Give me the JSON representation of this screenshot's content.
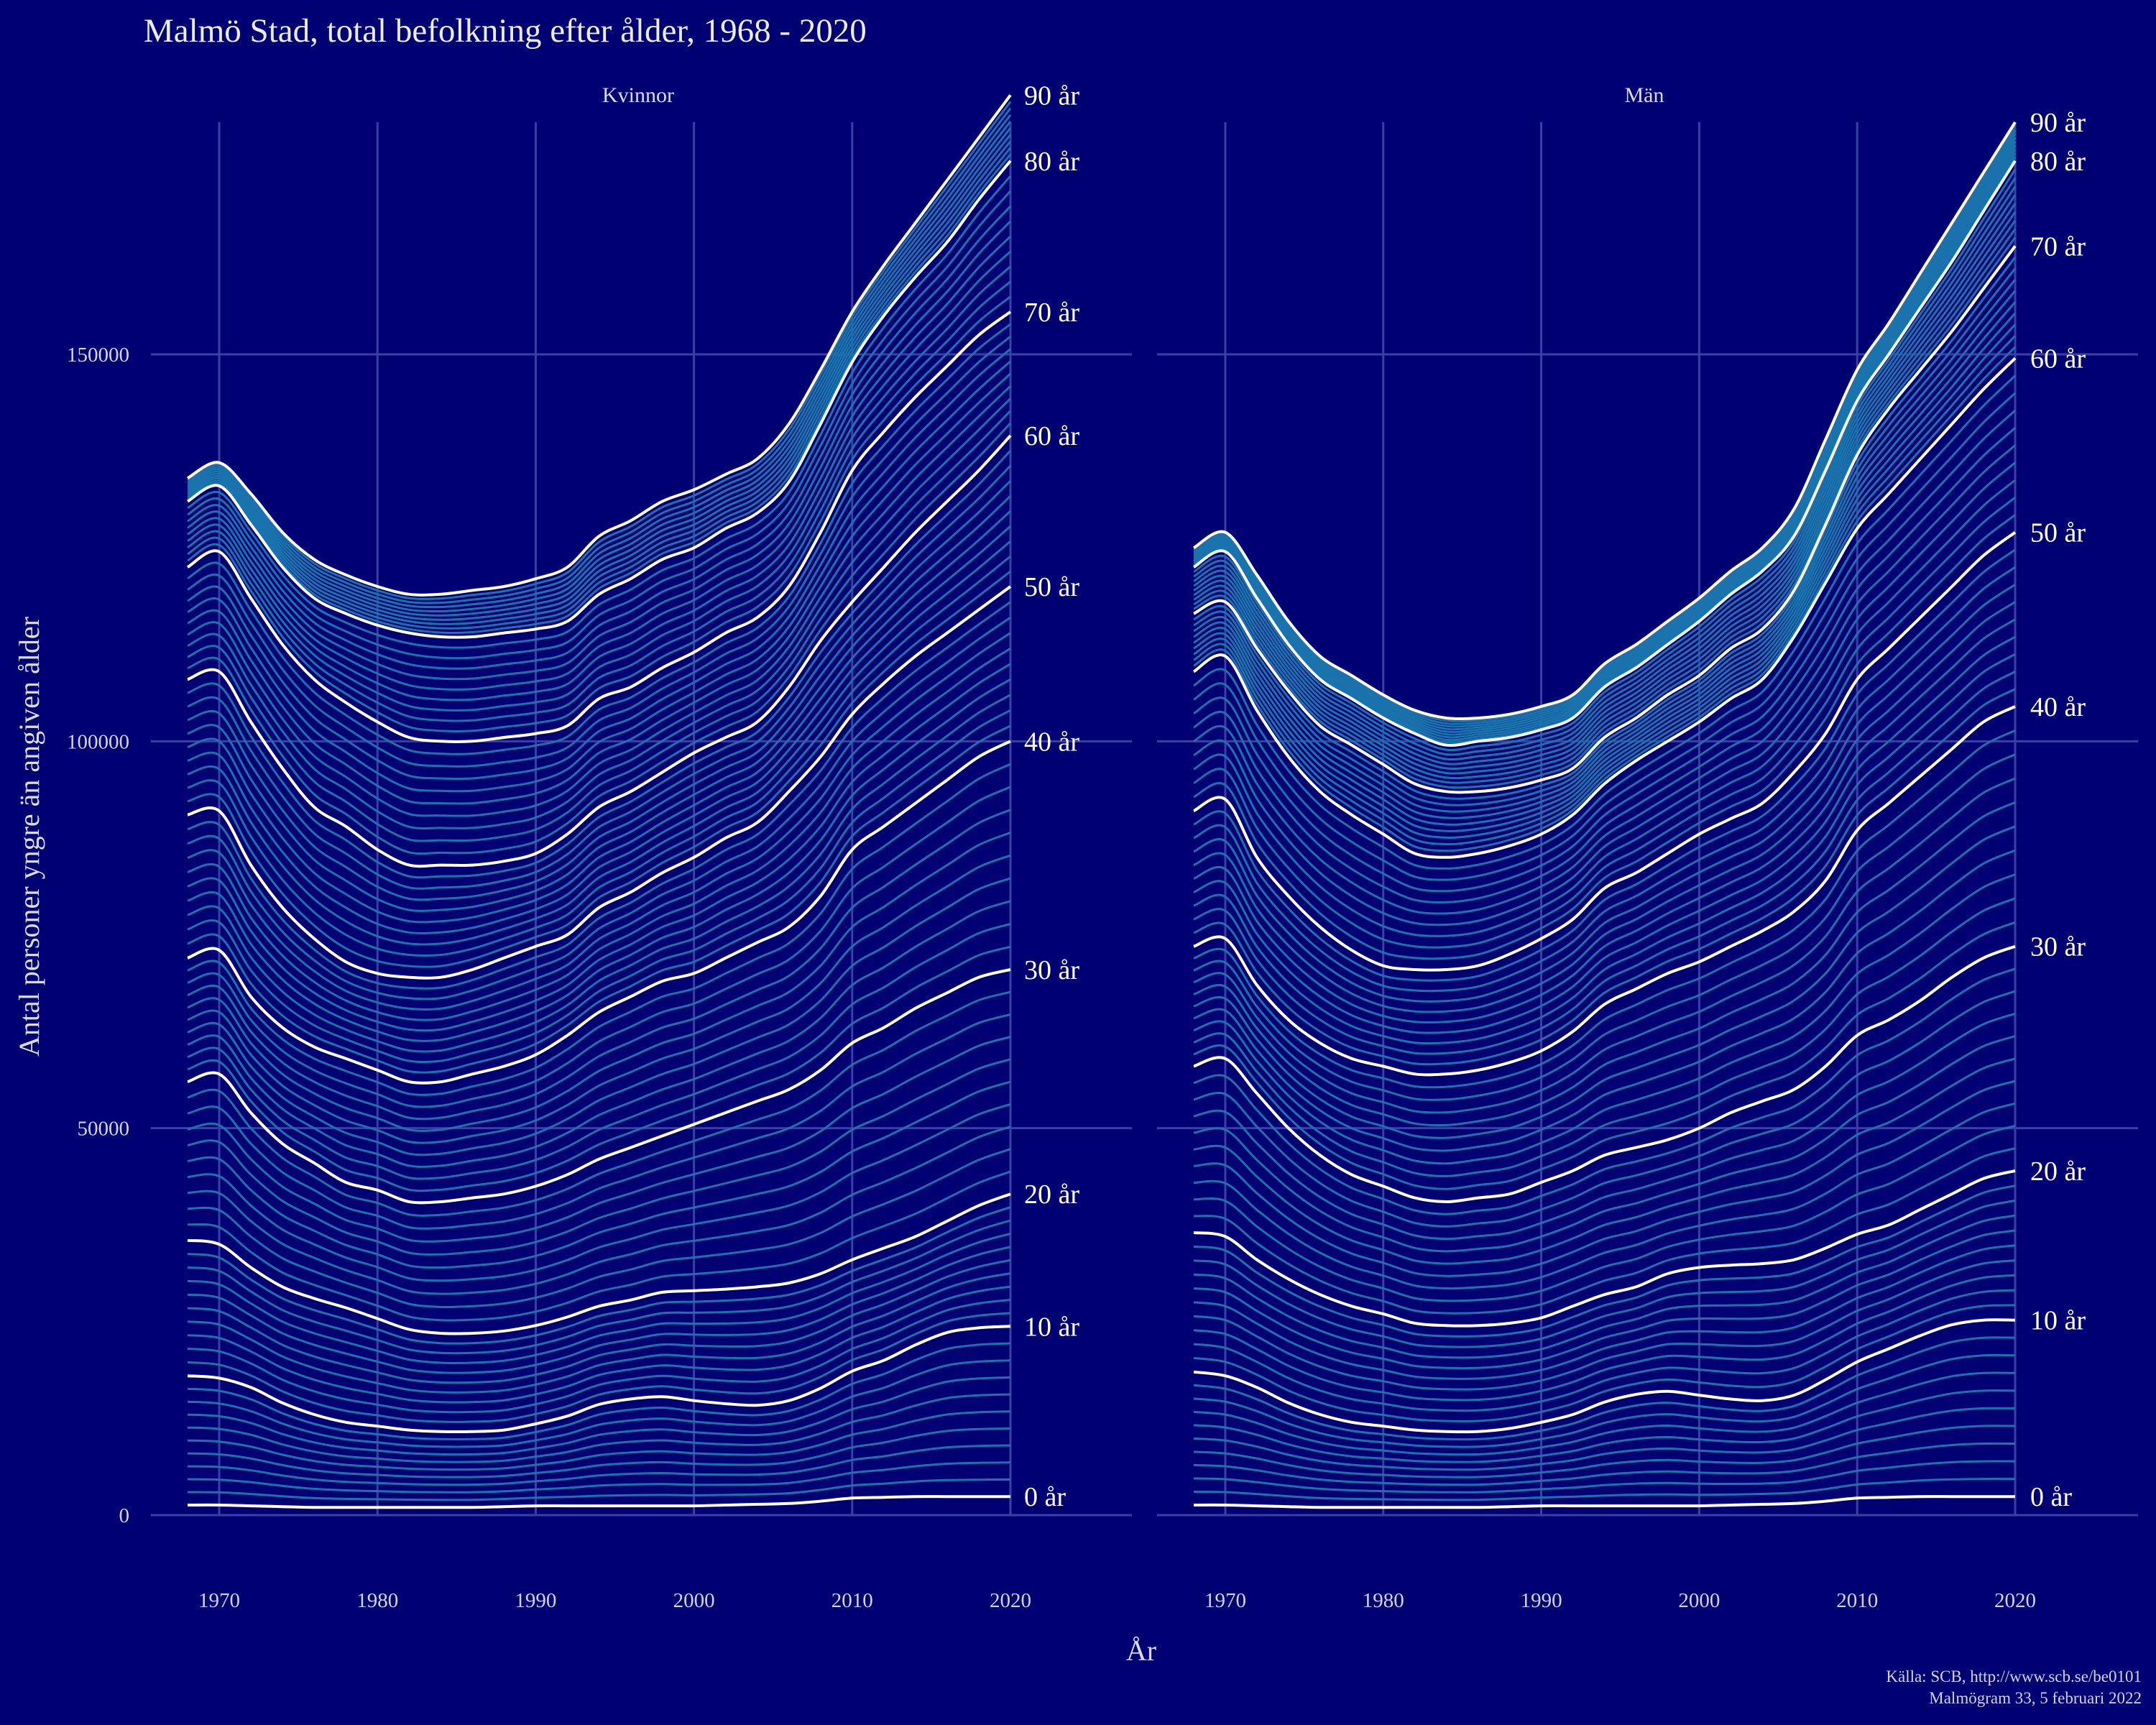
{
  "title": "Malmö Stad, total befolkning efter ålder, 1968 - 2020",
  "caption": [
    "Källa: SCB, http://www.scb.se/be0101",
    "Malmögram 33, 5 februari 2022"
  ],
  "colors": {
    "background": "#000072",
    "grid": "#3a3fa8",
    "minor_line": "#1a73ad",
    "major_line": "#ffffff"
  },
  "chart_data": {
    "type": "line",
    "ylabel": "Antal personer yngre än angiven ålder",
    "xlabel": "År",
    "xlim": [
      1968,
      2020
    ],
    "ylim": [
      0,
      180000
    ],
    "x_ticks": [
      1970,
      1980,
      1990,
      2000,
      2010,
      2020
    ],
    "y_ticks": [
      0,
      50000,
      100000,
      150000
    ],
    "years": [
      1968,
      1970,
      1972,
      1974,
      1976,
      1978,
      1980,
      1982,
      1984,
      1986,
      1988,
      1990,
      1992,
      1994,
      1996,
      1998,
      2000,
      2002,
      2004,
      2006,
      2008,
      2010,
      2012,
      2014,
      2016,
      2018,
      2020
    ],
    "panels": [
      {
        "name": "Kvinnor",
        "series": [
          {
            "name": "0 år",
            "label": "0 år",
            "values": [
              1300,
              1300,
              1200,
              1100,
              1000,
              1000,
              1000,
              1000,
              1000,
              1000,
              1100,
              1200,
              1200,
              1200,
              1200,
              1200,
              1200,
              1300,
              1400,
              1500,
              1800,
              2200,
              2300,
              2400,
              2400,
              2400,
              2400
            ]
          },
          {
            "name": "10 år",
            "label": "10 år",
            "values": [
              18000,
              17700,
              16500,
              14500,
              13000,
              12000,
              11500,
              11000,
              10800,
              10800,
              11000,
              11800,
              12800,
              14300,
              15000,
              15300,
              14800,
              14400,
              14200,
              14800,
              16400,
              18600,
              20000,
              22000,
              23600,
              24200,
              24400
            ]
          },
          {
            "name": "20 år",
            "label": "20 år",
            "values": [
              35500,
              35000,
              32000,
              29500,
              28000,
              26800,
              25400,
              24000,
              23500,
              23500,
              23800,
              24500,
              25600,
              27000,
              27800,
              28800,
              29000,
              29200,
              29500,
              30000,
              31200,
              33000,
              34500,
              36000,
              38000,
              40000,
              41500
            ]
          },
          {
            "name": "30 år",
            "label": "30 år",
            "values": [
              56000,
              57000,
              52000,
              48000,
              45500,
              43000,
              42000,
              40500,
              40500,
              41000,
              41500,
              42500,
              44000,
              46000,
              47500,
              49000,
              50500,
              52000,
              53500,
              55000,
              57500,
              61000,
              63000,
              65500,
              67500,
              69500,
              70500
            ]
          },
          {
            "name": "40 år",
            "label": "40 år",
            "values": [
              72000,
              73000,
              67000,
              63000,
              60500,
              59000,
              57500,
              56000,
              56000,
              57000,
              58000,
              59500,
              62000,
              65000,
              67000,
              69000,
              70000,
              72000,
              74000,
              76000,
              80000,
              86000,
              89000,
              92000,
              95000,
              98000,
              100000
            ]
          },
          {
            "name": "50 år",
            "label": "50 år",
            "values": [
              90500,
              91000,
              84000,
              78500,
              74500,
              71500,
              70000,
              69500,
              69500,
              70500,
              72000,
              73500,
              75000,
              78500,
              80500,
              83000,
              85000,
              87500,
              89500,
              93500,
              98000,
              103500,
              107500,
              111000,
              114000,
              117000,
              120000
            ]
          },
          {
            "name": "60 år",
            "label": "60 år",
            "values": [
              108000,
              109000,
              102500,
              96500,
              91500,
              89000,
              86000,
              84000,
              84000,
              84000,
              84500,
              85500,
              88000,
              91500,
              93500,
              96000,
              98500,
              100500,
              102500,
              107000,
              113000,
              118000,
              122500,
              127000,
              131000,
              135000,
              139500
            ]
          },
          {
            "name": "70 år",
            "label": "70 år",
            "values": [
              122500,
              124500,
              118500,
              112500,
              108000,
              105000,
              102500,
              100500,
              100000,
              100000,
              100500,
              101000,
              102000,
              105500,
              107000,
              109500,
              111500,
              114000,
              116000,
              120000,
              127000,
              135000,
              140000,
              144500,
              148500,
              152500,
              155500
            ]
          },
          {
            "name": "80 år",
            "label": "80 år",
            "values": [
              131000,
              133000,
              128000,
              122500,
              118500,
              116500,
              115000,
              114000,
              113500,
              113500,
              114000,
              114500,
              115500,
              119000,
              121000,
              123500,
              125000,
              127500,
              129500,
              133500,
              141000,
              149000,
              155000,
              160000,
              164500,
              170000,
              175000
            ]
          },
          {
            "name": "90 år",
            "label": "90 år",
            "values": [
              134000,
              136000,
              132000,
              127000,
              123500,
              121500,
              120000,
              119000,
              119000,
              119500,
              120000,
              121000,
              122500,
              126500,
              128500,
              131000,
              132500,
              134500,
              136500,
              141000,
              148000,
              155500,
              161500,
              167000,
              172500,
              178000,
              183500
            ]
          }
        ]
      },
      {
        "name": "Män",
        "series": [
          {
            "name": "0 år",
            "label": "0 år",
            "values": [
              1300,
              1300,
              1200,
              1100,
              1000,
              1000,
              1000,
              1000,
              1000,
              1000,
              1100,
              1200,
              1200,
              1200,
              1200,
              1200,
              1200,
              1300,
              1400,
              1500,
              1800,
              2200,
              2300,
              2400,
              2400,
              2400,
              2400
            ]
          },
          {
            "name": "10 år",
            "label": "10 år",
            "values": [
              18500,
              18000,
              16500,
              14500,
              13000,
              12000,
              11500,
              11000,
              10800,
              10800,
              11200,
              12000,
              13000,
              14600,
              15600,
              16000,
              15500,
              15000,
              14800,
              15500,
              17500,
              19800,
              21500,
              23200,
              24600,
              25200,
              25200
            ]
          },
          {
            "name": "20 år",
            "label": "20 år",
            "values": [
              36500,
              36000,
              33000,
              30500,
              28500,
              27000,
              26000,
              24800,
              24500,
              24500,
              24800,
              25500,
              27000,
              28500,
              29500,
              31200,
              32000,
              32300,
              32500,
              33000,
              34500,
              36300,
              37500,
              39500,
              41500,
              43500,
              44500
            ]
          },
          {
            "name": "30 år",
            "label": "30 år",
            "values": [
              58000,
              59000,
              54500,
              50000,
              46500,
              44000,
              42500,
              41000,
              40500,
              41000,
              41500,
              43000,
              44500,
              46500,
              47500,
              48500,
              50000,
              52000,
              53500,
              55000,
              58000,
              62000,
              64000,
              66500,
              69500,
              72000,
              73500
            ]
          },
          {
            "name": "40 år",
            "label": "40 år",
            "values": [
              73500,
              74500,
              68500,
              64000,
              61000,
              59000,
              58000,
              57000,
              57000,
              57500,
              58500,
              60000,
              62500,
              66000,
              68000,
              70000,
              71500,
              73500,
              75500,
              78000,
              82000,
              88500,
              92000,
              95500,
              99000,
              102500,
              104500
            ]
          },
          {
            "name": "50 år",
            "label": "50 år",
            "values": [
              91000,
              92500,
              85000,
              80000,
              76000,
              73000,
              71000,
              70500,
              70500,
              71000,
              72500,
              74500,
              77000,
              81000,
              83000,
              85500,
              88000,
              90000,
              92000,
              96000,
              101000,
              108000,
              112000,
              116000,
              120000,
              124000,
              127000
            ]
          },
          {
            "name": "60 år",
            "label": "60 år",
            "values": [
              109000,
              111000,
              104000,
              98000,
              93500,
              90500,
              88000,
              85500,
              85000,
              85500,
              86500,
              88000,
              90500,
              94500,
              97500,
              100000,
              102500,
              105500,
              108000,
              113500,
              120500,
              127500,
              132000,
              136500,
              141000,
              145500,
              149500
            ]
          },
          {
            "name": "70 år",
            "label": "70 år",
            "values": [
              116500,
              118000,
              112000,
              106500,
              102000,
              99500,
              97000,
              94500,
              93500,
              93500,
              94000,
              95000,
              96500,
              100500,
              103000,
              106000,
              108500,
              112000,
              114500,
              119500,
              128000,
              137000,
              143000,
              148000,
              153000,
              158500,
              164000
            ]
          },
          {
            "name": "80 år",
            "label": "80 år",
            "values": [
              122500,
              124500,
              118500,
              112500,
              108000,
              105500,
              103000,
              101000,
              99500,
              100000,
              100500,
              101500,
              103000,
              107000,
              109500,
              112500,
              115500,
              119000,
              122000,
              126500,
              135000,
              144000,
              150000,
              156000,
              162000,
              168500,
              175000
            ]
          },
          {
            "name": "90 år",
            "label": "90 år",
            "values": [
              125000,
              127000,
              121500,
              115500,
              111000,
              108500,
              106000,
              104000,
              103000,
              103000,
              103500,
              104500,
              106000,
              110000,
              112500,
              115500,
              118500,
              122000,
              125000,
              130000,
              139000,
              148000,
              154000,
              160500,
              167000,
              173500,
              180000
            ]
          }
        ]
      }
    ]
  }
}
